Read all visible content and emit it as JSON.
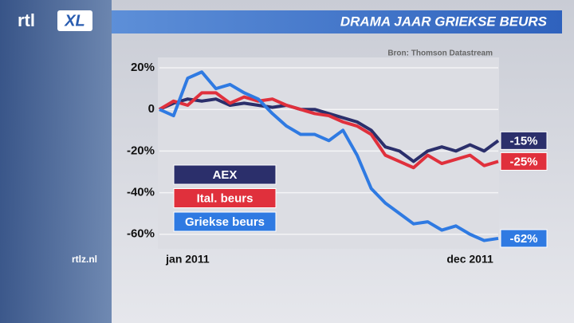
{
  "logo": {
    "rtl": "rtl",
    "xl": "XL"
  },
  "website": "rtlz.nl",
  "chart_data": {
    "type": "line",
    "title": "DRAMA JAAR GRIEKSE BEURS",
    "source": "Bron: Thomson Datastream",
    "x": [
      0,
      0.5,
      1,
      1.5,
      2,
      2.5,
      3,
      3.5,
      4,
      4.5,
      5,
      5.5,
      6,
      6.5,
      7,
      7.5,
      8,
      8.5,
      9,
      9.5,
      10,
      10.5,
      11,
      11.5,
      12
    ],
    "xlim": [
      0,
      12
    ],
    "xticks": [
      {
        "value": 1,
        "label": "jan 2011"
      },
      {
        "value": 11,
        "label": "dec 2011"
      }
    ],
    "ylim": [
      -67,
      25
    ],
    "yticks": [
      {
        "value": 20,
        "label": "20%"
      },
      0,
      {
        "value": -20,
        "label": "-20%"
      },
      {
        "value": -40,
        "label": "-40%"
      },
      {
        "value": -60,
        "label": "-60%"
      }
    ],
    "grid": true,
    "legend": "lower-left",
    "series": [
      {
        "name": "AEX",
        "color": "#2b2f6b",
        "end_label": "-15%",
        "values": [
          0,
          3,
          5,
          4,
          5,
          2,
          3,
          2,
          1,
          2,
          0,
          0,
          -2,
          -4,
          -6,
          -10,
          -18,
          -20,
          -25,
          -20,
          -18,
          -20,
          -17,
          -20,
          -15
        ]
      },
      {
        "name": "Ital. beurs",
        "color": "#e0303c",
        "end_label": "-25%",
        "values": [
          0,
          4,
          2,
          8,
          8,
          3,
          6,
          4,
          5,
          2,
          0,
          -2,
          -3,
          -6,
          -8,
          -12,
          -22,
          -25,
          -28,
          -22,
          -26,
          -24,
          -22,
          -27,
          -25
        ]
      },
      {
        "name": "Griekse beurs",
        "color": "#2f7ae2",
        "end_label": "-62%",
        "values": [
          0,
          -3,
          15,
          18,
          10,
          12,
          8,
          5,
          -2,
          -8,
          -12,
          -12,
          -15,
          -10,
          -22,
          -38,
          -45,
          -50,
          -55,
          -54,
          -58,
          -56,
          -60,
          -63,
          -62
        ]
      }
    ]
  }
}
